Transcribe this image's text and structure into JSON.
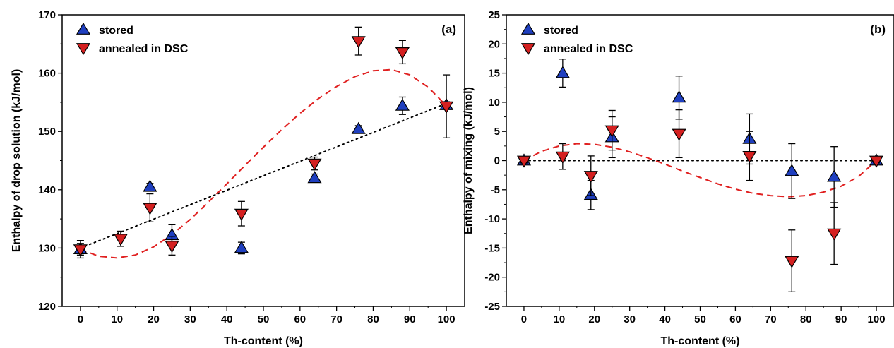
{
  "chart_data": [
    {
      "type": "scatter",
      "panel_label": "(a)",
      "xlabel": "Th-content (%)",
      "ylabel": "Enthalpy of drop solution (kJ/mol)",
      "xlim": [
        -5,
        105
      ],
      "ylim": [
        120,
        170
      ],
      "xticks": [
        0,
        10,
        20,
        30,
        40,
        50,
        60,
        70,
        80,
        90,
        100
      ],
      "yticks": [
        120,
        130,
        140,
        150,
        160,
        170
      ],
      "grid": false,
      "legend_position": "top-left",
      "series": [
        {
          "name": "stored",
          "marker": "triangle-up",
          "color": "#1f3fbf",
          "points": [
            {
              "x": 0,
              "y": 129.8,
              "err": 1.5
            },
            {
              "x": 19,
              "y": 140.5,
              "err": 0.6
            },
            {
              "x": 25,
              "y": 132.2,
              "err": 1.8
            },
            {
              "x": 44,
              "y": 130.0,
              "err": 1.0
            },
            {
              "x": 64,
              "y": 142.0,
              "err": 0.7
            },
            {
              "x": 76,
              "y": 150.4,
              "err": 0.6
            },
            {
              "x": 88,
              "y": 154.4,
              "err": 1.5
            },
            {
              "x": 100,
              "y": 154.5,
              "err": 0.6
            }
          ]
        },
        {
          "name": "annealed in DSC",
          "marker": "triangle-down",
          "color": "#d42020",
          "points": [
            {
              "x": 0,
              "y": 129.8,
              "err": 1.0
            },
            {
              "x": 11,
              "y": 131.6,
              "err": 1.3
            },
            {
              "x": 19,
              "y": 136.9,
              "err": 2.4
            },
            {
              "x": 25,
              "y": 130.4,
              "err": 1.6
            },
            {
              "x": 44,
              "y": 135.9,
              "err": 2.1
            },
            {
              "x": 64,
              "y": 144.5,
              "err": 1.1
            },
            {
              "x": 76,
              "y": 165.5,
              "err": 2.4
            },
            {
              "x": 88,
              "y": 163.6,
              "err": 2.0
            },
            {
              "x": 100,
              "y": 154.3,
              "err": 5.4
            }
          ]
        }
      ],
      "fit_lines": [
        {
          "style": "dotted",
          "color": "#000000",
          "x": [
            0,
            100
          ],
          "y": [
            130.0,
            154.8
          ]
        },
        {
          "style": "dashed",
          "color": "#e02020",
          "x": [
            0,
            5,
            10,
            15,
            20,
            25,
            30,
            35,
            40,
            45,
            50,
            55,
            60,
            65,
            70,
            75,
            80,
            85,
            90,
            95,
            100
          ],
          "y": [
            129.8,
            128.6,
            128.3,
            128.8,
            130.2,
            132.3,
            134.9,
            137.9,
            141.0,
            144.2,
            147.3,
            150.3,
            153.1,
            155.6,
            157.7,
            159.4,
            160.4,
            160.6,
            159.7,
            157.6,
            154.4
          ]
        }
      ]
    },
    {
      "type": "scatter",
      "panel_label": "(b)",
      "xlabel": "Th-content (%)",
      "ylabel": "Enthalpy of mixing (kJ/mol)",
      "xlim": [
        -5,
        105
      ],
      "ylim": [
        -25,
        25
      ],
      "xticks": [
        0,
        10,
        20,
        30,
        40,
        50,
        60,
        70,
        80,
        90,
        100
      ],
      "yticks": [
        -25,
        -20,
        -15,
        -10,
        -5,
        0,
        5,
        10,
        15,
        20,
        25
      ],
      "grid": false,
      "legend_position": "top-left",
      "series": [
        {
          "name": "stored",
          "marker": "triangle-up",
          "color": "#1f3fbf",
          "points": [
            {
              "x": 0,
              "y": 0.0,
              "err": 0.5
            },
            {
              "x": 11,
              "y": 15.0,
              "err": 2.4
            },
            {
              "x": 19,
              "y": -5.9,
              "err": 2.5
            },
            {
              "x": 25,
              "y": 4.0,
              "err": 3.5
            },
            {
              "x": 44,
              "y": 10.8,
              "err": 3.7
            },
            {
              "x": 64,
              "y": 3.7,
              "err": 4.3
            },
            {
              "x": 76,
              "y": -1.8,
              "err": 4.7
            },
            {
              "x": 88,
              "y": -2.8,
              "err": 5.2
            },
            {
              "x": 100,
              "y": 0.0,
              "err": 0.4
            }
          ]
        },
        {
          "name": "annealed in DSC",
          "marker": "triangle-down",
          "color": "#d42020",
          "points": [
            {
              "x": 0,
              "y": 0.0,
              "err": 0.4
            },
            {
              "x": 11,
              "y": 0.7,
              "err": 2.2
            },
            {
              "x": 19,
              "y": -2.6,
              "err": 3.4
            },
            {
              "x": 25,
              "y": 5.2,
              "err": 3.4
            },
            {
              "x": 44,
              "y": 4.6,
              "err": 4.1
            },
            {
              "x": 64,
              "y": 0.8,
              "err": 4.2
            },
            {
              "x": 76,
              "y": -17.2,
              "err": 5.3
            },
            {
              "x": 88,
              "y": -12.5,
              "err": 5.3
            },
            {
              "x": 100,
              "y": 0.0,
              "err": 0.4
            }
          ]
        }
      ],
      "fit_lines": [
        {
          "style": "dotted",
          "color": "#000000",
          "x": [
            0,
            100
          ],
          "y": [
            0,
            0
          ]
        },
        {
          "style": "dashed",
          "color": "#e02020",
          "x": [
            0,
            5,
            10,
            15,
            20,
            25,
            30,
            35,
            40,
            45,
            50,
            55,
            60,
            65,
            70,
            75,
            80,
            85,
            90,
            95,
            100
          ],
          "y": [
            0.0,
            1.6,
            2.5,
            2.9,
            2.8,
            2.3,
            1.5,
            0.5,
            -0.6,
            -1.8,
            -2.9,
            -4.0,
            -4.9,
            -5.6,
            -6.0,
            -6.2,
            -6.0,
            -5.4,
            -4.4,
            -2.7,
            0.0
          ]
        }
      ]
    }
  ]
}
